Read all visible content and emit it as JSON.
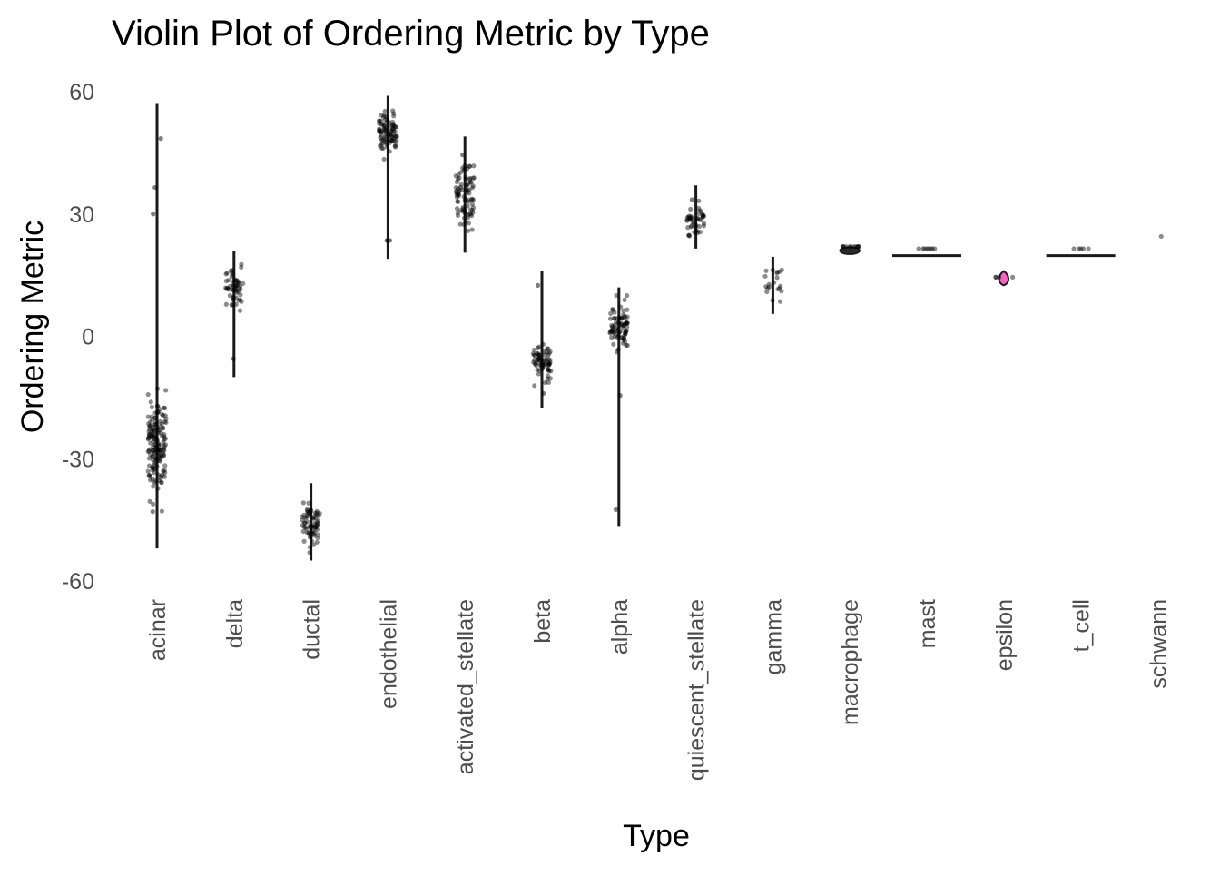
{
  "chart_data": {
    "type": "violin",
    "title": "Violin Plot of Ordering Metric by Type",
    "xlabel": "Type",
    "ylabel": "Ordering Metric",
    "ylim": [
      -62,
      61
    ],
    "yticks": [
      {
        "value": 60,
        "label": "60"
      },
      {
        "value": 30,
        "label": "30"
      },
      {
        "value": 0,
        "label": "0"
      },
      {
        "value": -30,
        "label": "-30"
      },
      {
        "value": -60,
        "label": "-60"
      }
    ],
    "grid": false,
    "legend": "none",
    "colors": {
      "outline": "#1a1a1a",
      "points": "#000000",
      "epsilon_fill": "#ff61c3",
      "tick_text": "#4d4d4d"
    },
    "categories": [
      "acinar",
      "delta",
      "ductal",
      "endothelial",
      "activated_stellate",
      "beta",
      "alpha",
      "quiescent_stellate",
      "gamma",
      "macrophage",
      "mast",
      "epsilon",
      "t_cell",
      "schwann"
    ],
    "series": [
      {
        "category": "acinar",
        "min": -52,
        "max": 57,
        "center": -27,
        "spread": 6,
        "n": 160,
        "outliers": [
          48.5,
          36.5,
          30,
          -43
        ]
      },
      {
        "category": "delta",
        "min": -10,
        "max": 21,
        "center": 12,
        "spread": 2.5,
        "n": 55,
        "outliers": [
          -5.5
        ]
      },
      {
        "category": "ductal",
        "min": -55,
        "max": -36,
        "center": -46,
        "spread": 2.5,
        "n": 70,
        "outliers": []
      },
      {
        "category": "endothelial",
        "min": 19,
        "max": 59,
        "center": 50,
        "spread": 2.5,
        "n": 90,
        "outliers": [
          23.5,
          23.5,
          23.5
        ]
      },
      {
        "category": "activated_stellate",
        "min": 20.5,
        "max": 49,
        "center": 34.5,
        "spread": 4,
        "n": 85,
        "outliers": [
          44.5
        ]
      },
      {
        "category": "beta",
        "min": -17.5,
        "max": 16,
        "center": -7,
        "spread": 2.5,
        "n": 70,
        "outliers": [
          12.5,
          -14
        ]
      },
      {
        "category": "alpha",
        "min": -46.5,
        "max": 12,
        "center": 2.5,
        "spread": 3,
        "n": 80,
        "outliers": [
          -14.5,
          -42.5
        ]
      },
      {
        "category": "quiescent_stellate",
        "min": 21.5,
        "max": 37,
        "center": 28.5,
        "spread": 2.2,
        "n": 45,
        "outliers": [
          33.5
        ]
      },
      {
        "category": "gamma",
        "min": 5.5,
        "max": 19.5,
        "center": 13,
        "spread": 2,
        "n": 20,
        "outliers": []
      },
      {
        "category": "macrophage",
        "min": 20,
        "max": 22,
        "center": 21,
        "spread": 0.5,
        "n": 12,
        "outliers": []
      },
      {
        "category": "mast",
        "min": 19.5,
        "max": 20,
        "center": 19.8,
        "spread": 0.1,
        "n": 8,
        "outliers": []
      },
      {
        "category": "epsilon",
        "min": 12.5,
        "max": 16,
        "center": 14,
        "spread": 1,
        "n": 4,
        "outliers": []
      },
      {
        "category": "t_cell",
        "min": 19.5,
        "max": 20,
        "center": 19.8,
        "spread": 0.1,
        "n": 5,
        "outliers": []
      },
      {
        "category": "schwann",
        "min": 24.5,
        "max": 24.5,
        "center": 24.5,
        "spread": 0,
        "n": 1,
        "outliers": []
      }
    ]
  }
}
